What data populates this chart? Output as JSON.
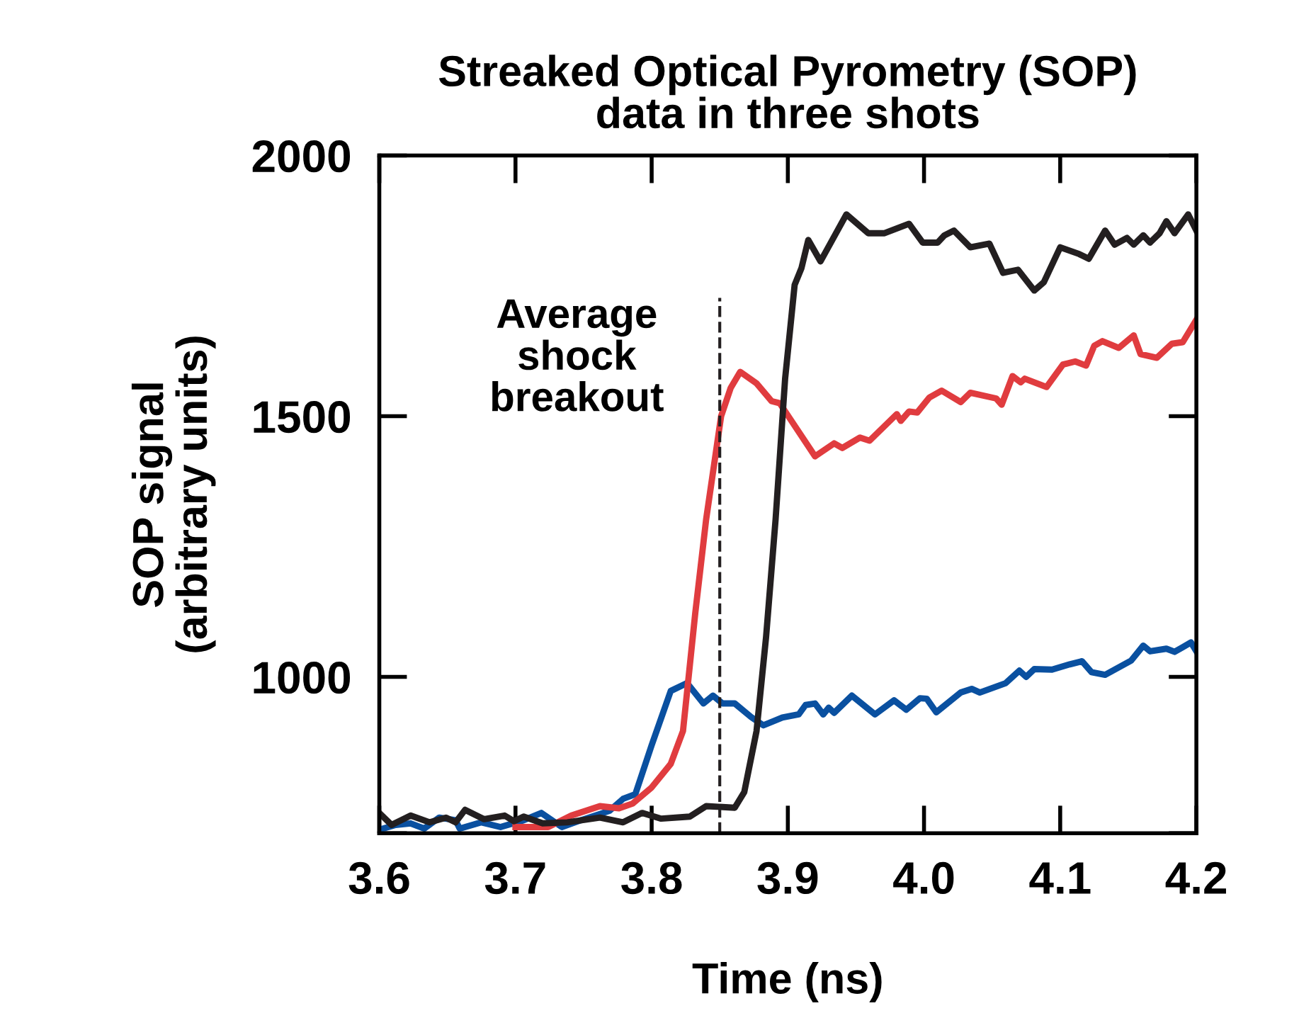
{
  "chart_data": {
    "type": "line",
    "title": "Streaked Optical Pyrometry (SOP)\ndata in three shots",
    "xlabel": "Time (ns)",
    "ylabel": "SOP signal\n(arbitrary units)",
    "xlim": [
      3.6,
      4.2
    ],
    "xticks": [
      {
        "value": 3.6,
        "label": "3.6"
      },
      {
        "value": 3.7,
        "label": "3.7"
      },
      {
        "value": 3.8,
        "label": "3.8"
      },
      {
        "value": 3.9,
        "label": "3.9"
      },
      {
        "value": 4.0,
        "label": "4.0"
      },
      {
        "value": 4.1,
        "label": "4.1"
      },
      {
        "value": 4.2,
        "label": "4.2"
      }
    ],
    "ylim": [
      700,
      2000
    ],
    "yticks": [
      {
        "value": 700,
        "label": null
      },
      1000,
      1500,
      2000
    ],
    "grid": false,
    "legend": false,
    "marker": "none",
    "line_style": "solid",
    "ref_lines": [
      {
        "axis": "x",
        "value": 3.85,
        "label": "Average\nshock\nbreakout",
        "color": "#231f20",
        "line_style": "dashed"
      }
    ],
    "series": [
      {
        "color": "#0a50a0",
        "x": [
          3.6,
          3.612,
          3.623,
          3.633,
          3.644,
          3.656,
          3.659,
          3.675,
          3.689,
          3.706,
          3.719,
          3.734,
          3.748,
          3.769,
          3.779,
          3.788,
          3.8,
          3.814,
          3.826,
          3.838,
          3.845,
          3.852,
          3.861,
          3.873,
          3.882,
          3.896,
          3.908,
          3.913,
          3.92,
          3.926,
          3.93,
          3.934,
          3.947,
          3.964,
          3.978,
          3.987,
          3.997,
          4.002,
          4.009,
          4.027,
          4.035,
          4.041,
          4.06,
          4.07,
          4.075,
          4.081,
          4.094,
          4.107,
          4.116,
          4.123,
          4.133,
          4.152,
          4.161,
          4.166,
          4.178,
          4.184,
          4.19,
          4.196,
          4.2
        ],
        "values": [
          707,
          716,
          719,
          709,
          730,
          725,
          709,
          721,
          712,
          725,
          739,
          712,
          725,
          743,
          766,
          775,
          869,
          973,
          988,
          949,
          964,
          949,
          949,
          923,
          907,
          922,
          928,
          946,
          949,
          928,
          941,
          931,
          964,
          928,
          955,
          937,
          959,
          958,
          932,
          970,
          977,
          970,
          988,
          1012,
          1000,
          1015,
          1014,
          1024,
          1030,
          1009,
          1004,
          1031,
          1060,
          1049,
          1054,
          1048,
          1057,
          1066,
          1049
        ]
      },
      {
        "color": "#e03c3f",
        "x": [
          3.7,
          3.724,
          3.741,
          3.762,
          3.776,
          3.786,
          3.8,
          3.814,
          3.823,
          3.832,
          3.84,
          3.851,
          3.858,
          3.865,
          3.877,
          3.888,
          3.894,
          3.92,
          3.934,
          3.94,
          3.953,
          3.96,
          3.98,
          3.983,
          3.989,
          3.995,
          4.004,
          4.013,
          4.027,
          4.034,
          4.053,
          4.057,
          4.065,
          4.071,
          4.074,
          4.09,
          4.102,
          4.111,
          4.119,
          4.125,
          4.131,
          4.143,
          4.154,
          4.159,
          4.171,
          4.182,
          4.19,
          4.2
        ],
        "values": [
          712,
          712,
          734,
          752,
          748,
          757,
          788,
          833,
          896,
          1122,
          1302,
          1500,
          1554,
          1585,
          1563,
          1529,
          1525,
          1423,
          1448,
          1439,
          1459,
          1453,
          1504,
          1491,
          1509,
          1507,
          1536,
          1549,
          1527,
          1545,
          1534,
          1522,
          1577,
          1565,
          1572,
          1556,
          1599,
          1605,
          1597,
          1635,
          1644,
          1631,
          1655,
          1619,
          1612,
          1639,
          1642,
          1685
        ]
      },
      {
        "color": "#231f20",
        "x": [
          3.6,
          3.609,
          3.623,
          3.637,
          3.649,
          3.656,
          3.663,
          3.677,
          3.692,
          3.699,
          3.706,
          3.72,
          3.738,
          3.762,
          3.779,
          3.793,
          3.807,
          3.828,
          3.84,
          3.861,
          3.868,
          3.877,
          3.884,
          3.891,
          3.898,
          3.905,
          3.91,
          3.915,
          3.924,
          3.943,
          3.959,
          3.971,
          3.989,
          3.999,
          4.01,
          4.015,
          4.022,
          4.034,
          4.048,
          4.058,
          4.069,
          4.081,
          4.088,
          4.1,
          4.114,
          4.121,
          4.133,
          4.14,
          4.149,
          4.154,
          4.161,
          4.166,
          4.173,
          4.178,
          4.184,
          4.194,
          4.2
        ],
        "values": [
          739,
          716,
          734,
          721,
          730,
          721,
          745,
          727,
          734,
          723,
          732,
          719,
          721,
          730,
          721,
          739,
          728,
          732,
          752,
          749,
          779,
          896,
          1076,
          1302,
          1572,
          1752,
          1784,
          1838,
          1797,
          1887,
          1851,
          1851,
          1869,
          1833,
          1833,
          1847,
          1856,
          1824,
          1831,
          1775,
          1781,
          1741,
          1757,
          1824,
          1811,
          1802,
          1856,
          1829,
          1842,
          1829,
          1847,
          1833,
          1851,
          1874,
          1851,
          1887,
          1856
        ]
      }
    ]
  }
}
